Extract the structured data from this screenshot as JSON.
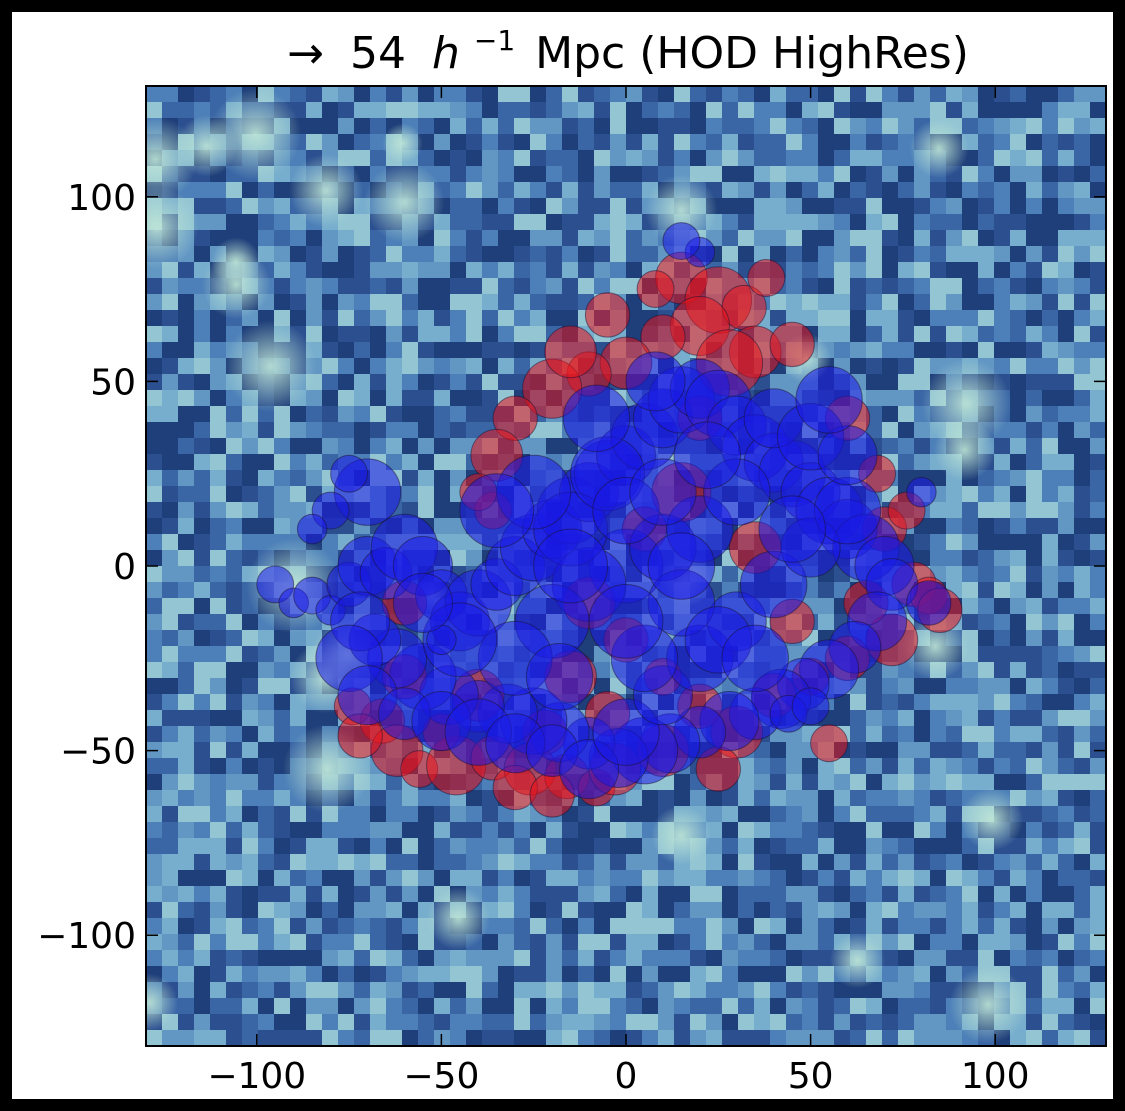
{
  "chart_data": {
    "type": "scatter",
    "title": {
      "arrow": "→",
      "number": "54",
      "h": "h",
      "exp": "−1",
      "rest": "Mpc (HOD HighRes)"
    },
    "xlabel": "",
    "ylabel": "",
    "xlim": [
      -130,
      130
    ],
    "ylim": [
      -130,
      130
    ],
    "x_ticks": [
      {
        "value": -100,
        "label": "−100"
      },
      {
        "value": -50,
        "label": "−50"
      },
      {
        "value": 0,
        "label": "0"
      },
      {
        "value": 50,
        "label": "50"
      },
      {
        "value": 100,
        "label": "100"
      }
    ],
    "y_ticks": [
      {
        "value": 100,
        "label": "100"
      },
      {
        "value": 50,
        "label": "50"
      },
      {
        "value": 0,
        "label": "0"
      },
      {
        "value": -50,
        "label": "−50"
      },
      {
        "value": -100,
        "label": "−100"
      }
    ],
    "grid": false,
    "background": "density-field",
    "series": [
      {
        "color": "#e8141c",
        "points": [
          [
            15,
            78
          ],
          [
            25,
            72
          ],
          [
            32,
            70
          ],
          [
            20,
            65
          ],
          [
            35,
            58
          ],
          [
            10,
            62
          ],
          [
            28,
            55
          ],
          [
            0,
            55
          ],
          [
            -10,
            52
          ],
          [
            -20,
            48
          ],
          [
            -30,
            40
          ],
          [
            -35,
            30
          ],
          [
            -36,
            15
          ],
          [
            -66,
            -42
          ],
          [
            -62,
            -50
          ],
          [
            -56,
            -55
          ],
          [
            -46,
            -54
          ],
          [
            -36,
            -52
          ],
          [
            -26,
            -55
          ],
          [
            -16,
            -57
          ],
          [
            -8,
            -60
          ],
          [
            -3,
            -55
          ],
          [
            -22,
            -45
          ],
          [
            -40,
            -35
          ],
          [
            -60,
            -30
          ],
          [
            -74,
            -38
          ],
          [
            -72,
            -46
          ],
          [
            70,
            10
          ],
          [
            76,
            15
          ],
          [
            78,
            -5
          ],
          [
            82,
            -8
          ],
          [
            85,
            -12
          ],
          [
            72,
            -20
          ],
          [
            60,
            -25
          ],
          [
            50,
            -30
          ],
          [
            40,
            -35
          ],
          [
            30,
            -45
          ],
          [
            20,
            -38
          ],
          [
            10,
            -30
          ],
          [
            0,
            -20
          ],
          [
            -10,
            -10
          ],
          [
            5,
            10
          ],
          [
            15,
            20
          ],
          [
            -5,
            -40
          ],
          [
            -15,
            -30
          ],
          [
            38,
            78
          ],
          [
            45,
            60
          ],
          [
            8,
            75
          ],
          [
            -5,
            68
          ],
          [
            -15,
            58
          ],
          [
            60,
            40
          ],
          [
            68,
            25
          ],
          [
            65,
            -10
          ],
          [
            10,
            -50
          ],
          [
            -30,
            -60
          ],
          [
            -50,
            -45
          ],
          [
            -20,
            -62
          ],
          [
            25,
            -55
          ],
          [
            55,
            -48
          ],
          [
            45,
            -15
          ],
          [
            35,
            5
          ],
          [
            20,
            40
          ],
          [
            -40,
            20
          ],
          [
            -60,
            -10
          ]
        ],
        "radii": [
          7,
          9,
          6,
          8,
          7,
          6,
          9,
          7,
          6,
          8,
          6,
          7,
          5,
          6,
          7,
          5,
          8,
          6,
          7,
          6,
          5,
          7,
          6,
          7,
          6,
          5,
          6,
          6,
          5,
          6,
          5,
          6,
          7,
          6,
          5,
          6,
          7,
          6,
          5,
          6,
          7,
          6,
          8,
          6,
          7,
          5,
          6,
          5,
          6,
          7,
          6,
          5,
          6,
          7,
          6,
          5,
          6,
          6,
          5,
          6,
          7,
          6,
          5,
          6
        ]
      },
      {
        "color": "#1a1ae6",
        "points": [
          [
            -95,
            -5
          ],
          [
            -90,
            -10
          ],
          [
            -85,
            -8
          ],
          [
            -80,
            -12
          ],
          [
            -75,
            -5
          ],
          [
            -70,
            0
          ],
          [
            -65,
            -2
          ],
          [
            -60,
            5
          ],
          [
            -55,
            0
          ],
          [
            -50,
            -8
          ],
          [
            -45,
            -15
          ],
          [
            -40,
            -10
          ],
          [
            -35,
            -5
          ],
          [
            -30,
            0
          ],
          [
            -25,
            5
          ],
          [
            -20,
            10
          ],
          [
            -15,
            15
          ],
          [
            -10,
            20
          ],
          [
            -5,
            25
          ],
          [
            0,
            30
          ],
          [
            5,
            35
          ],
          [
            10,
            40
          ],
          [
            15,
            45
          ],
          [
            20,
            48
          ],
          [
            25,
            44
          ],
          [
            30,
            38
          ],
          [
            35,
            32
          ],
          [
            40,
            28
          ],
          [
            45,
            25
          ],
          [
            50,
            20
          ],
          [
            55,
            15
          ],
          [
            60,
            10
          ],
          [
            65,
            5
          ],
          [
            70,
            0
          ],
          [
            72,
            -5
          ],
          [
            68,
            -15
          ],
          [
            62,
            -22
          ],
          [
            55,
            -28
          ],
          [
            48,
            -32
          ],
          [
            42,
            -36
          ],
          [
            35,
            -40
          ],
          [
            28,
            -42
          ],
          [
            20,
            -45
          ],
          [
            12,
            -48
          ],
          [
            5,
            -50
          ],
          [
            -2,
            -52
          ],
          [
            -10,
            -48
          ],
          [
            -18,
            -45
          ],
          [
            -25,
            -42
          ],
          [
            -32,
            -40
          ],
          [
            -40,
            -38
          ],
          [
            -48,
            -35
          ],
          [
            -55,
            -30
          ],
          [
            -62,
            -25
          ],
          [
            -68,
            -20
          ],
          [
            -72,
            -15
          ],
          [
            -75,
            -25
          ],
          [
            -70,
            -35
          ],
          [
            -60,
            -40
          ],
          [
            -50,
            -42
          ],
          [
            -40,
            -45
          ],
          [
            -30,
            -48
          ],
          [
            -20,
            -50
          ],
          [
            -10,
            -55
          ],
          [
            0,
            -45
          ],
          [
            10,
            -35
          ],
          [
            20,
            -25
          ],
          [
            30,
            -15
          ],
          [
            40,
            -5
          ],
          [
            50,
            5
          ],
          [
            60,
            15
          ],
          [
            40,
            40
          ],
          [
            50,
            35
          ],
          [
            60,
            30
          ],
          [
            55,
            45
          ],
          [
            0,
            0
          ],
          [
            10,
            5
          ],
          [
            -10,
            -5
          ],
          [
            20,
            10
          ],
          [
            -20,
            -15
          ],
          [
            30,
            20
          ],
          [
            -30,
            -25
          ],
          [
            15,
            -10
          ],
          [
            -15,
            10
          ],
          [
            25,
            -20
          ],
          [
            -25,
            20
          ],
          [
            5,
            -25
          ],
          [
            -5,
            25
          ],
          [
            35,
            -25
          ],
          [
            -35,
            15
          ],
          [
            0,
            15
          ],
          [
            0,
            -15
          ],
          [
            15,
            0
          ],
          [
            -15,
            0
          ],
          [
            45,
            10
          ],
          [
            -45,
            -20
          ],
          [
            -70,
            20
          ],
          [
            -75,
            25
          ],
          [
            -80,
            15
          ],
          [
            -85,
            10
          ],
          [
            20,
            85
          ],
          [
            15,
            88
          ],
          [
            80,
            20
          ],
          [
            82,
            -10
          ],
          [
            44,
            -40
          ],
          [
            50,
            -38
          ],
          [
            -50,
            -20
          ],
          [
            -55,
            -10
          ],
          [
            10,
            20
          ],
          [
            -8,
            40
          ],
          [
            8,
            50
          ],
          [
            22,
            30
          ],
          [
            -18,
            -30
          ]
        ],
        "radii": [
          5,
          4,
          5,
          4,
          6,
          8,
          7,
          9,
          8,
          7,
          8,
          9,
          7,
          8,
          9,
          8,
          9,
          8,
          9,
          8,
          9,
          8,
          9,
          8,
          9,
          8,
          9,
          8,
          9,
          8,
          9,
          8,
          9,
          8,
          7,
          8,
          7,
          8,
          7,
          8,
          7,
          8,
          7,
          8,
          9,
          8,
          7,
          8,
          9,
          8,
          7,
          8,
          9,
          8,
          7,
          8,
          9,
          8,
          7,
          8,
          9,
          8,
          7,
          8,
          9,
          8,
          9,
          8,
          9,
          8,
          9,
          8,
          9,
          8,
          9,
          10,
          9,
          10,
          9,
          10,
          9,
          10,
          9,
          10,
          9,
          10,
          9,
          10,
          9,
          10,
          9,
          10,
          9,
          10,
          9,
          10,
          9,
          5,
          5,
          4,
          4,
          5,
          4,
          6,
          5,
          5,
          4,
          8,
          9,
          9,
          8,
          9,
          9
        ]
      }
    ]
  }
}
